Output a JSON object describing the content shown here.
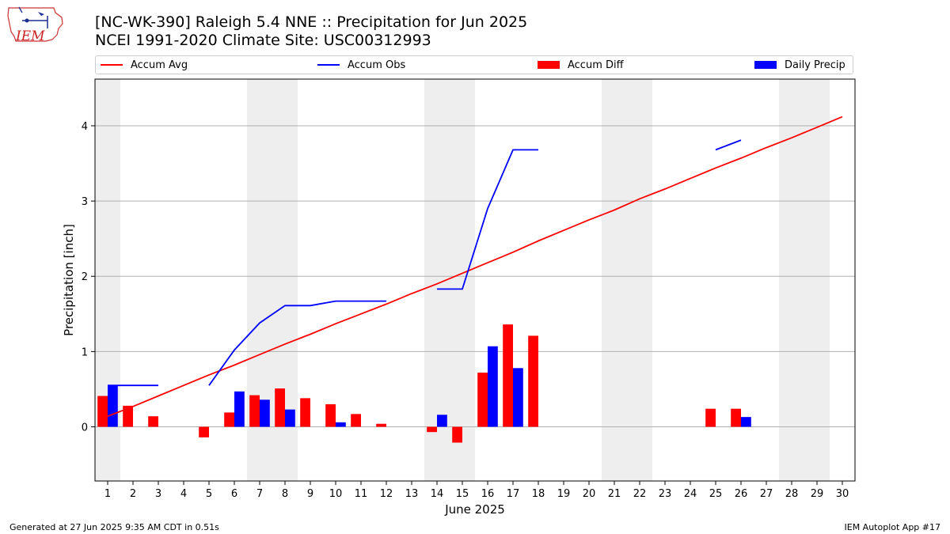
{
  "header": {
    "title_line1": "[NC-WK-390] Raleigh 5.4 NNE :: Precipitation for Jun 2025",
    "title_line2": "NCEI 1991-2020 Climate Site: USC00312993"
  },
  "logo": {
    "text": "IEM"
  },
  "footer": {
    "left": "Generated at 27 Jun 2025 9:35 AM CDT in 0.51s",
    "right": "IEM Autoplot App #17"
  },
  "chart_data": {
    "type": "bar",
    "xlabel": "June 2025",
    "ylabel": "Precipitation [inch]",
    "x": [
      1,
      2,
      3,
      4,
      5,
      6,
      7,
      8,
      9,
      10,
      11,
      12,
      13,
      14,
      15,
      16,
      17,
      18,
      19,
      20,
      21,
      22,
      23,
      24,
      25,
      26,
      27,
      28,
      29,
      30
    ],
    "xlim": [
      0.5,
      30.5
    ],
    "ylim": [
      -0.72,
      4.62
    ],
    "yticks": [
      0,
      1,
      2,
      3,
      4
    ],
    "grid": "horizontal",
    "legend_placement": "top",
    "weekend_shading_days": [
      1,
      7,
      8,
      14,
      15,
      21,
      22,
      28,
      29
    ],
    "colors": {
      "accum_avg": "#ff0000",
      "accum_obs": "#0000ff",
      "accum_diff": "#ff0000",
      "daily_precip": "#0000ff",
      "weekend": "#eeeeee",
      "grid": "#b0b0b0"
    },
    "series": [
      {
        "name": "Accum Avg",
        "type": "line",
        "values": [
          0.14,
          0.27,
          0.41,
          0.55,
          0.69,
          0.82,
          0.96,
          1.1,
          1.23,
          1.37,
          1.5,
          1.63,
          1.77,
          1.9,
          2.04,
          2.18,
          2.32,
          2.47,
          2.61,
          2.75,
          2.88,
          3.03,
          3.16,
          3.3,
          3.44,
          3.57,
          3.71,
          3.84,
          3.98,
          4.12
        ]
      },
      {
        "name": "Accum Obs",
        "type": "line",
        "values": [
          0.55,
          0.55,
          0.55,
          null,
          0.55,
          1.02,
          1.38,
          1.61,
          1.61,
          1.67,
          1.67,
          1.67,
          null,
          1.83,
          1.83,
          2.9,
          3.68,
          3.68,
          null,
          null,
          null,
          null,
          null,
          null,
          3.68,
          3.81,
          null,
          null,
          null,
          null
        ]
      },
      {
        "name": "Accum Diff",
        "type": "bar",
        "values": [
          0.41,
          0.28,
          0.14,
          null,
          -0.14,
          0.19,
          0.42,
          0.51,
          0.38,
          0.3,
          0.17,
          0.04,
          null,
          -0.07,
          -0.21,
          0.72,
          1.36,
          1.21,
          null,
          null,
          null,
          null,
          null,
          null,
          0.24,
          0.24,
          null,
          null,
          null,
          null
        ]
      },
      {
        "name": "Daily Precip",
        "type": "bar",
        "values": [
          0.55,
          0,
          0,
          0,
          0,
          0.47,
          0.36,
          0.23,
          0,
          0.06,
          0,
          0,
          0,
          0.16,
          0,
          1.07,
          0.78,
          0,
          0,
          0,
          0,
          0,
          0,
          0,
          0,
          0.13,
          0,
          0,
          0,
          0
        ]
      }
    ]
  }
}
